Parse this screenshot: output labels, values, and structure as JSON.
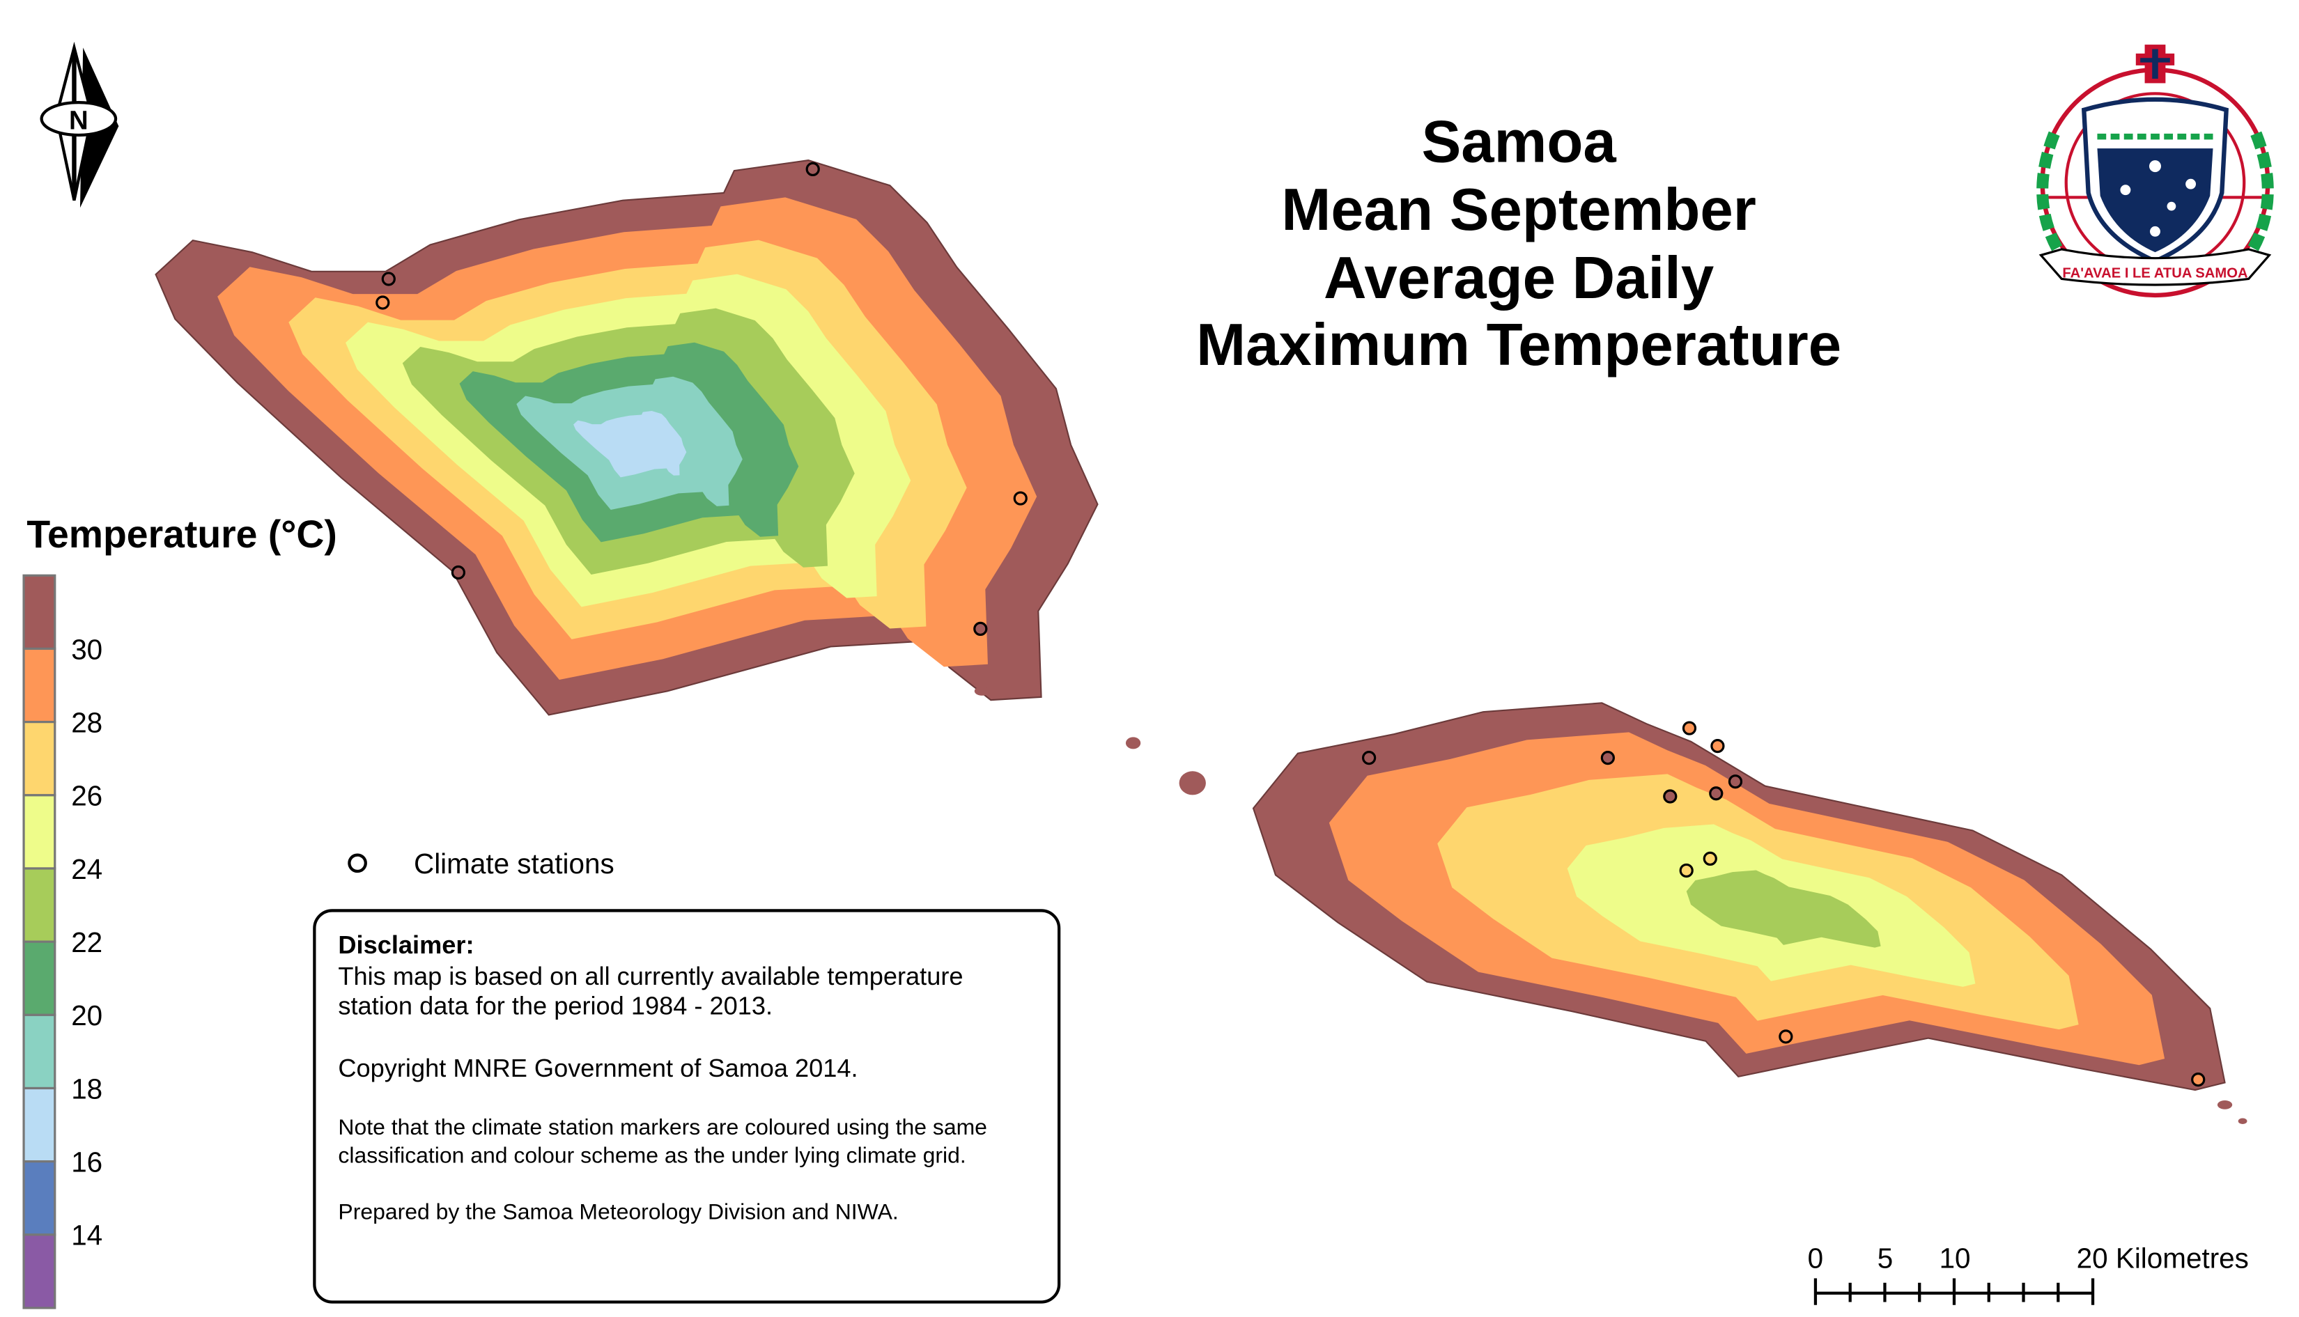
{
  "title": {
    "lines": [
      "Samoa",
      "Mean September",
      "Average Daily",
      "Maximum Temperature"
    ]
  },
  "legend": {
    "title": "Temperature (°C)",
    "classes": [
      {
        "color": "#A05A5A"
      },
      {
        "color": "#FE9656"
      },
      {
        "color": "#FED66E"
      },
      {
        "color": "#EEFC8A"
      },
      {
        "color": "#A7CC5A"
      },
      {
        "color": "#5AAA6E"
      },
      {
        "color": "#8AD2C2"
      },
      {
        "color": "#B9DCF4"
      },
      {
        "color": "#5A7EBE"
      },
      {
        "color": "#8A5AA5"
      }
    ],
    "break_labels": [
      "30",
      "28",
      "26",
      "24",
      "22",
      "20",
      "18",
      "16",
      "14"
    ],
    "stations_label": "Climate stations"
  },
  "disclaimer": {
    "heading": "Disclaimer:",
    "line1": "This map is based on all currently available temperature",
    "line2": "station data for the period 1984 - 2013.",
    "copyright": "Copyright MNRE Government of Samoa 2014.",
    "note1": "Note that the climate station markers are coloured using the same",
    "note2": "classification and colour scheme as the under lying climate grid.",
    "prepared": "Prepared by the Samoa Meteorology Division and NIWA."
  },
  "scale_bar": {
    "labels": [
      "0",
      "5",
      "10",
      "20 Kilometres"
    ]
  },
  "north_arrow": {
    "letter": "N"
  },
  "emblem": {
    "motto": "FA'AVAE I LE ATUA SAMOA"
  },
  "icons": {
    "north_arrow": "north-arrow-icon",
    "emblem": "samoa-coat-of-arms",
    "station": "circle-marker"
  }
}
